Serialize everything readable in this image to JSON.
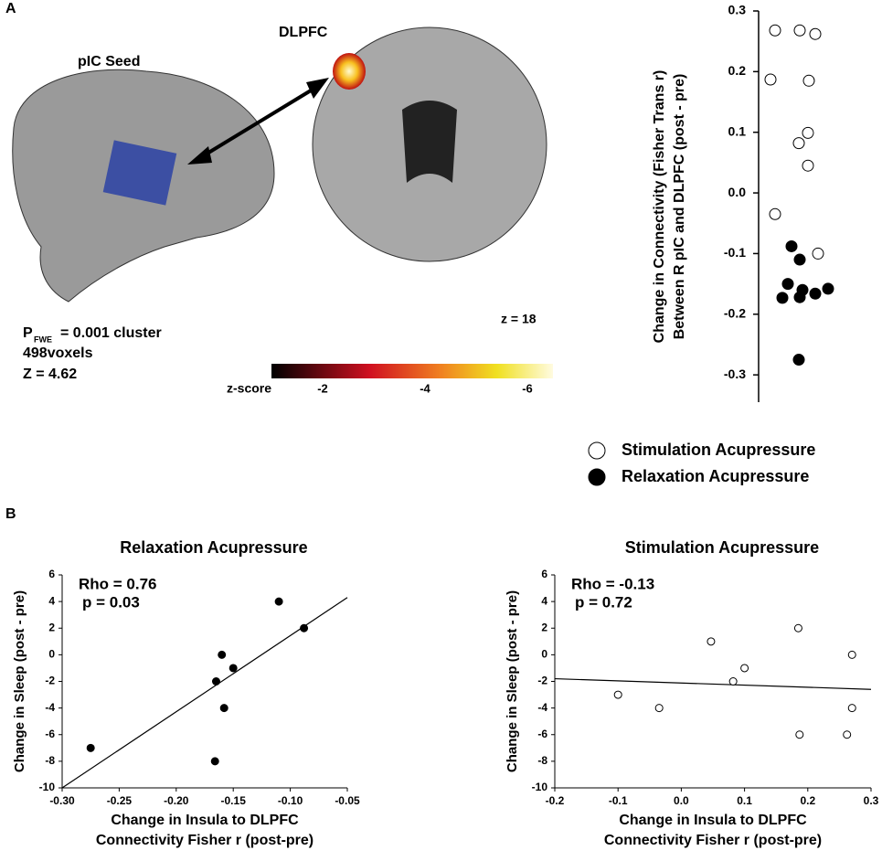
{
  "panel_labels": [
    "A",
    "B"
  ],
  "brain_panel": {
    "seed_label": "pIC Seed",
    "target_label": "DLPFC",
    "p_letter": "P",
    "p_subscript": "FWE",
    "p_rest": "= 0.001 cluster",
    "voxels": "498voxels",
    "z_stat": "Z = 4.62",
    "slice": "z = 18",
    "colorbar": {
      "label": "z-score",
      "lim": [
        -1,
        -6.5
      ],
      "ticks": [
        -2,
        -4,
        -6
      ]
    }
  },
  "chart_data": [
    {
      "type": "strip",
      "ylabel": [
        "Change in Connectivity (Fisher Trans r)",
        "Between R pIC and DLPFC (post - pre)"
      ],
      "ylim": [
        -0.345,
        0.3
      ],
      "yticks": [
        0.3,
        0.2,
        0.1,
        {
          "value": 0,
          "label": "0.0"
        },
        -0.1,
        -0.2,
        -0.3
      ],
      "series": [
        {
          "name": "Stimulation Acupressure",
          "color": "#ffffff",
          "values": [
            0.268,
            0.268,
            0.262,
            0.187,
            0.185,
            0.099,
            0.082,
            0.045,
            -0.035,
            -0.1
          ]
        },
        {
          "name": "Relaxation Acupressure",
          "color": "#000000",
          "values": [
            -0.088,
            -0.11,
            -0.15,
            -0.16,
            -0.166,
            -0.172,
            -0.173,
            -0.158,
            -0.275
          ]
        }
      ]
    },
    {
      "type": "scatter",
      "title": "Relaxation Acupressure",
      "annotations": [
        "Rho = 0.76",
        "p = 0.03"
      ],
      "xlabel": [
        "Change in Insula to DLPFC",
        "Connectivity Fisher r (post-pre)"
      ],
      "ylabel": "Change in Sleep (post - pre)",
      "xlim": [
        -0.3,
        -0.05
      ],
      "xticks": [
        -0.3,
        -0.25,
        -0.2,
        -0.15,
        -0.1,
        -0.05
      ],
      "xtick_labels": [
        "-0.30",
        "-0.25",
        "-0.20",
        "-0.15",
        "-0.10",
        "-0.05"
      ],
      "ylim": [
        -10,
        6
      ],
      "yticks": [
        -10,
        -8,
        -6,
        -4,
        -2,
        0,
        2,
        4,
        6
      ],
      "color": "#000000",
      "x": [
        -0.275,
        -0.165,
        -0.16,
        -0.158,
        -0.166,
        -0.15,
        -0.11,
        -0.088
      ],
      "values": [
        -7,
        -2,
        0,
        -4,
        -8,
        -1,
        4,
        2
      ],
      "fit_line": {
        "x": [
          -0.3,
          -0.05
        ],
        "y": [
          -10,
          4.3
        ]
      }
    },
    {
      "type": "scatter",
      "title": "Stimulation Acupressure",
      "annotations": [
        "Rho = -0.13",
        "p = 0.72"
      ],
      "xlabel": [
        "Change in Insula to DLPFC",
        "Connectivity Fisher r (post-pre)"
      ],
      "ylabel": "Change in Sleep (post - pre)",
      "xlim": [
        -0.2,
        0.3
      ],
      "xticks": [
        -0.2,
        -0.1,
        {
          "value": 0,
          "label": "0.0"
        },
        0.1,
        0.2,
        0.3
      ],
      "ylim": [
        -10,
        6
      ],
      "yticks": [
        -10,
        -8,
        -6,
        -4,
        -2,
        0,
        2,
        4,
        6
      ],
      "color": "#ffffff",
      "x": [
        -0.1,
        -0.035,
        0.047,
        0.082,
        0.1,
        0.185,
        0.187,
        0.27,
        0.27,
        0.262
      ],
      "values": [
        -3,
        -4,
        1,
        -2,
        -1,
        2,
        -6,
        0,
        -4,
        -6
      ],
      "fit_line": {
        "x": [
          -0.2,
          0.3
        ],
        "y": [
          -1.8,
          -2.6
        ]
      }
    }
  ]
}
